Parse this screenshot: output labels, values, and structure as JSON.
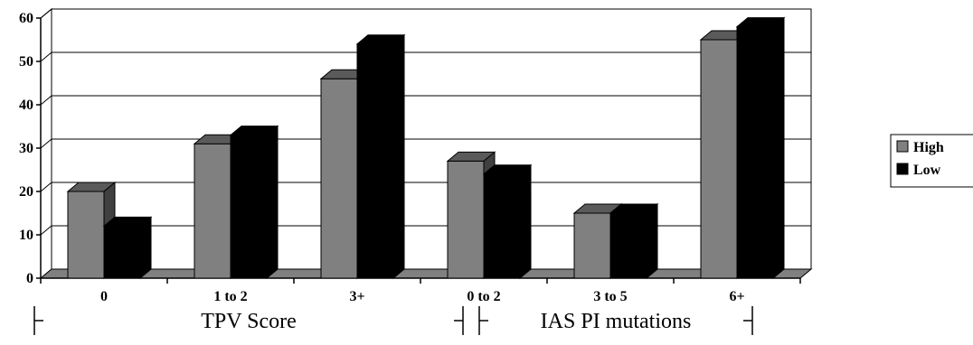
{
  "chart_data": {
    "type": "bar",
    "style": "3d-clustered",
    "categories": [
      "0",
      "1 to 2",
      "3+",
      "0 to 2",
      "3 to 5",
      "6+"
    ],
    "category_groups": [
      {
        "label": "TPV Score",
        "categories": [
          "0",
          "1 to 2",
          "3+"
        ]
      },
      {
        "label": "IAS PI mutations",
        "categories": [
          "0 to 2",
          "3 to 5",
          "6+"
        ]
      }
    ],
    "series": [
      {
        "name": "High",
        "color": "#808080",
        "values": [
          20,
          31,
          46,
          27,
          15,
          55
        ]
      },
      {
        "name": "Low",
        "color": "#000000",
        "values": [
          12,
          33,
          54,
          24,
          15,
          58
        ]
      }
    ],
    "ylim": [
      0,
      60
    ],
    "yticks": [
      "0",
      "10",
      "20",
      "30",
      "40",
      "50",
      "60"
    ],
    "grid": true,
    "legend_position": "right"
  }
}
